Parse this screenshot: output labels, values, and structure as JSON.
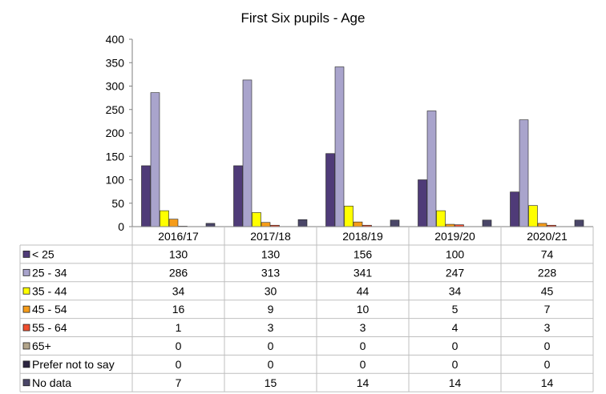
{
  "chart_data": {
    "type": "bar",
    "title": "First Six pupils - Age",
    "categories": [
      "2016/17",
      "2017/18",
      "2018/19",
      "2019/20",
      "2020/21"
    ],
    "ylim": [
      0,
      400
    ],
    "yticks": [
      0,
      50,
      100,
      150,
      200,
      250,
      300,
      350,
      400
    ],
    "grid": false,
    "legend": "data-table-below",
    "series": [
      {
        "name": "< 25",
        "color": "#4f3b78",
        "values": [
          130,
          130,
          156,
          100,
          74
        ]
      },
      {
        "name": "25 - 34",
        "color": "#a9a4cc",
        "values": [
          286,
          313,
          341,
          247,
          228
        ]
      },
      {
        "name": "35 - 44",
        "color": "#ffff00",
        "values": [
          34,
          30,
          44,
          34,
          45
        ]
      },
      {
        "name": "45 - 54",
        "color": "#f59c1a",
        "values": [
          16,
          9,
          10,
          5,
          7
        ]
      },
      {
        "name": "55 - 64",
        "color": "#f04e2e",
        "values": [
          1,
          3,
          3,
          4,
          3
        ]
      },
      {
        "name": "65+",
        "color": "#b3a58a",
        "values": [
          0,
          0,
          0,
          0,
          0
        ]
      },
      {
        "name": "Prefer not to say",
        "color": "#2b2440",
        "values": [
          0,
          0,
          0,
          0,
          0
        ]
      },
      {
        "name": "No data",
        "color": "#4a4668",
        "values": [
          7,
          15,
          14,
          14,
          14
        ]
      }
    ]
  }
}
